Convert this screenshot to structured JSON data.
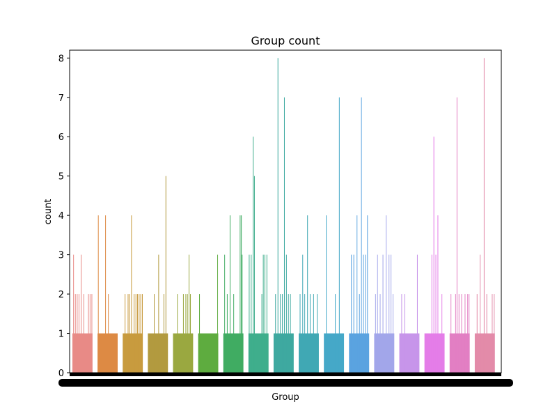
{
  "chart_data": {
    "type": "bar",
    "title": "Group count",
    "xlabel": "Group",
    "ylabel": "count",
    "ylim": [
      0,
      8.2
    ],
    "yticks": [
      0,
      1,
      2,
      3,
      4,
      5,
      6,
      7,
      8
    ],
    "grid": false,
    "x_tick_labels_unreadable": true,
    "groups": [
      {
        "color": "#e88a86",
        "spikes": [
          [
            0.04,
            3
          ],
          [
            0.13,
            2
          ],
          [
            0.22,
            2
          ],
          [
            0.31,
            2
          ],
          [
            0.42,
            3
          ],
          [
            0.55,
            2
          ],
          [
            0.78,
            2
          ],
          [
            0.86,
            2
          ],
          [
            0.95,
            2
          ]
        ]
      },
      {
        "color": "#dd8a44",
        "spikes": [
          [
            0.02,
            4
          ],
          [
            0.38,
            4
          ],
          [
            0.52,
            2
          ]
        ]
      },
      {
        "color": "#c89b3e",
        "spikes": [
          [
            0.1,
            2
          ],
          [
            0.25,
            2
          ],
          [
            0.32,
            2
          ],
          [
            0.42,
            4
          ],
          [
            0.55,
            2
          ],
          [
            0.64,
            2
          ],
          [
            0.72,
            2
          ],
          [
            0.8,
            2
          ],
          [
            0.88,
            2
          ],
          [
            0.96,
            2
          ]
        ]
      },
      {
        "color": "#b29a3f",
        "spikes": [
          [
            0.3,
            2
          ],
          [
            0.52,
            3
          ],
          [
            0.78,
            2
          ],
          [
            0.88,
            5
          ]
        ]
      },
      {
        "color": "#9aa840",
        "spikes": [
          [
            0.2,
            2
          ],
          [
            0.5,
            2
          ],
          [
            0.62,
            2
          ],
          [
            0.7,
            2
          ],
          [
            0.78,
            3
          ],
          [
            0.85,
            2
          ]
        ]
      },
      {
        "color": "#5eac3f",
        "spikes": [
          [
            0.05,
            2
          ],
          [
            0.95,
            3
          ]
        ]
      },
      {
        "color": "#40ac62",
        "spikes": [
          [
            0.05,
            3
          ],
          [
            0.18,
            2
          ],
          [
            0.32,
            4
          ],
          [
            0.5,
            2
          ],
          [
            0.82,
            4
          ],
          [
            0.88,
            4
          ],
          [
            0.92,
            3
          ]
        ]
      },
      {
        "color": "#3fae8c",
        "spikes": [
          [
            0.02,
            3
          ],
          [
            0.12,
            3
          ],
          [
            0.22,
            6
          ],
          [
            0.28,
            5
          ],
          [
            0.65,
            2
          ],
          [
            0.72,
            3
          ],
          [
            0.8,
            3
          ],
          [
            0.9,
            3
          ]
        ]
      },
      {
        "color": "#3ea9a0",
        "spikes": [
          [
            0.08,
            2
          ],
          [
            0.2,
            8
          ],
          [
            0.32,
            2
          ],
          [
            0.42,
            2
          ],
          [
            0.52,
            7
          ],
          [
            0.62,
            3
          ],
          [
            0.72,
            2
          ],
          [
            0.82,
            2
          ]
        ]
      },
      {
        "color": "#40a8b4",
        "spikes": [
          [
            0.05,
            2
          ],
          [
            0.18,
            3
          ],
          [
            0.28,
            2
          ],
          [
            0.42,
            4
          ],
          [
            0.55,
            2
          ],
          [
            0.72,
            2
          ],
          [
            0.9,
            2
          ]
        ]
      },
      {
        "color": "#45a8c8",
        "spikes": [
          [
            0.1,
            4
          ],
          [
            0.55,
            2
          ],
          [
            0.75,
            7
          ]
        ]
      },
      {
        "color": "#5aa3e0",
        "spikes": [
          [
            0.1,
            3
          ],
          [
            0.22,
            3
          ],
          [
            0.38,
            4
          ],
          [
            0.5,
            2
          ],
          [
            0.6,
            7
          ],
          [
            0.7,
            3
          ],
          [
            0.8,
            3
          ],
          [
            0.9,
            4
          ]
        ]
      },
      {
        "color": "#a2a6ea",
        "spikes": [
          [
            0.05,
            2
          ],
          [
            0.15,
            3
          ],
          [
            0.28,
            2
          ],
          [
            0.42,
            3
          ],
          [
            0.58,
            4
          ],
          [
            0.72,
            3
          ],
          [
            0.82,
            3
          ],
          [
            0.92,
            2
          ]
        ]
      },
      {
        "color": "#c795ea",
        "spikes": [
          [
            0.1,
            2
          ],
          [
            0.25,
            2
          ],
          [
            0.88,
            3
          ]
        ]
      },
      {
        "color": "#e47de8",
        "spikes": [
          [
            0.35,
            3
          ],
          [
            0.45,
            6
          ],
          [
            0.55,
            3
          ],
          [
            0.65,
            4
          ],
          [
            0.85,
            2
          ]
        ]
      },
      {
        "color": "#e27fc3",
        "spikes": [
          [
            0.05,
            2
          ],
          [
            0.28,
            2
          ],
          [
            0.35,
            7
          ],
          [
            0.45,
            2
          ],
          [
            0.58,
            2
          ],
          [
            0.75,
            2
          ],
          [
            0.88,
            2
          ],
          [
            0.95,
            2
          ]
        ]
      },
      {
        "color": "#e38ba9",
        "spikes": [
          [
            0.1,
            2
          ],
          [
            0.25,
            3
          ],
          [
            0.45,
            8
          ],
          [
            0.58,
            2
          ],
          [
            0.85,
            2
          ],
          [
            0.95,
            2
          ]
        ]
      }
    ]
  }
}
